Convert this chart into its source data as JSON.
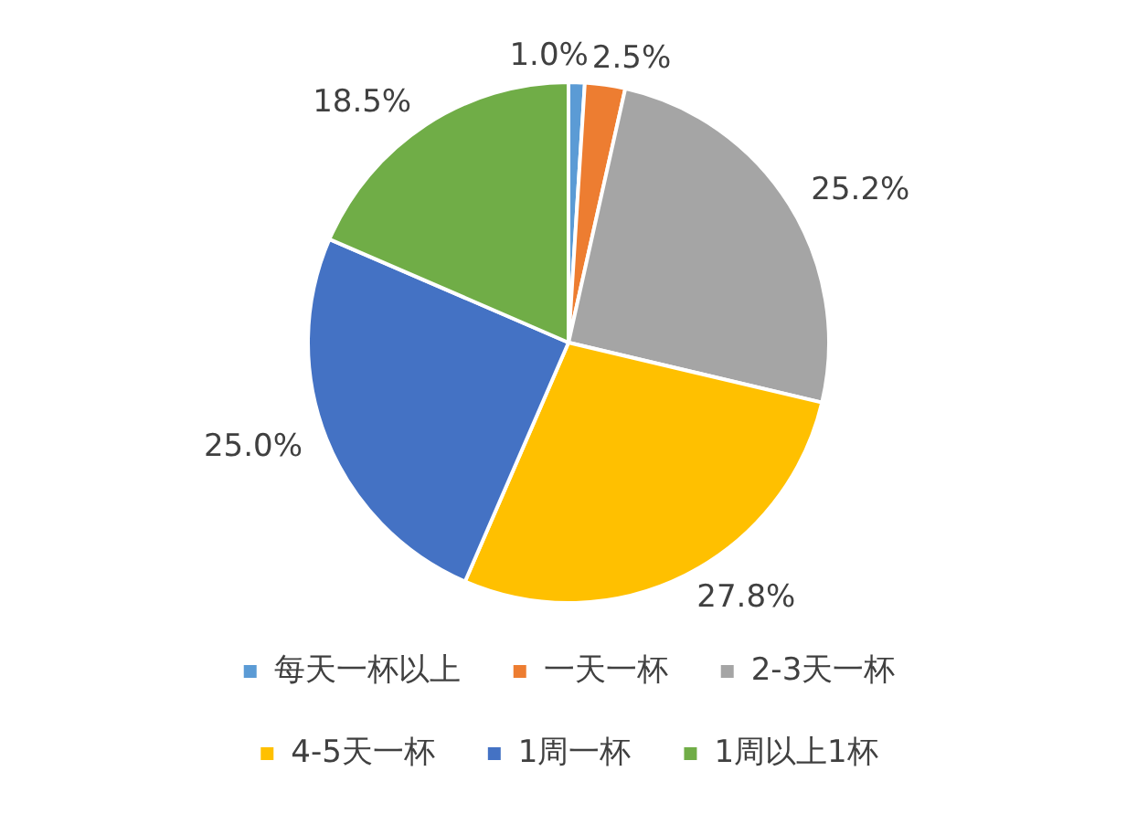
{
  "chart_data": {
    "type": "pie",
    "categories": [
      "每天一杯以上",
      "一天一杯",
      "2-3天一杯",
      "4-5天一杯",
      "1周一杯",
      "1周以上1杯"
    ],
    "values": [
      1.0,
      2.5,
      25.2,
      27.8,
      25.0,
      18.5
    ],
    "colors": [
      "#5b9bd5",
      "#ed7d31",
      "#a5a5a5",
      "#ffc000",
      "#4472c4",
      "#70ad47"
    ],
    "value_labels": [
      "1.0%",
      "2.5%",
      "25.2%",
      "27.8%",
      "25.0%",
      "18.5%"
    ],
    "legend": "bottom"
  }
}
